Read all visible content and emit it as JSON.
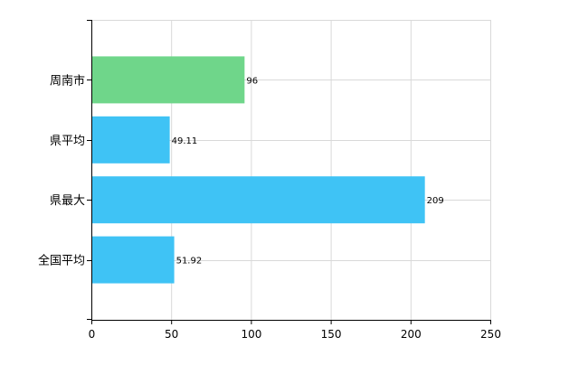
{
  "chart_data": {
    "type": "bar",
    "orientation": "horizontal",
    "categories": [
      "周南市",
      "県平均",
      "県最大",
      "全国平均"
    ],
    "values": [
      96,
      49.11,
      209,
      51.92
    ],
    "value_labels": [
      "96",
      "49.11",
      "209",
      "51.92"
    ],
    "bar_colors": [
      "#6fd68a",
      "#3fc3f5",
      "#3fc3f5",
      "#3fc3f5"
    ],
    "xlim": [
      0,
      250
    ],
    "x_ticks": [
      0,
      50,
      100,
      150,
      200,
      250
    ],
    "grid": true
  }
}
